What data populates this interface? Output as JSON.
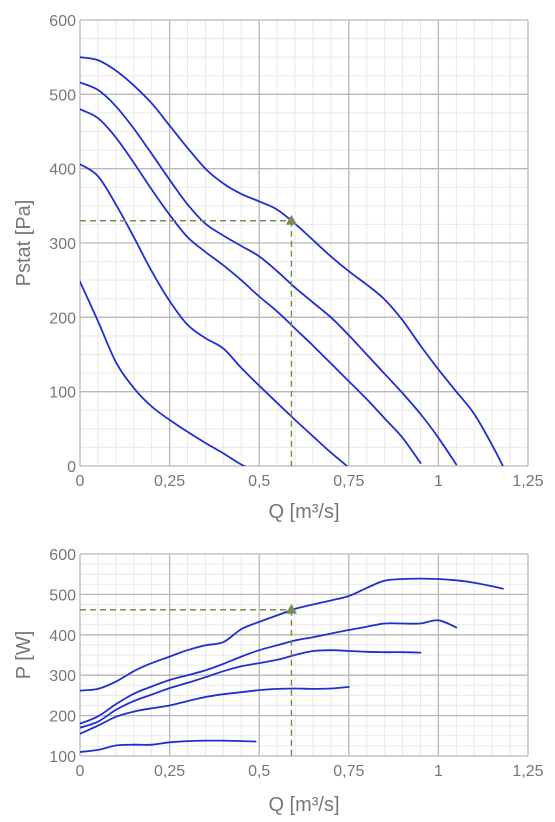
{
  "chart_data": [
    {
      "type": "line",
      "title": "",
      "xlabel": "Q [m³/s]",
      "ylabel": "Pstat [Pa]",
      "xlim": [
        0,
        1.25
      ],
      "ylim": [
        0,
        600
      ],
      "x_ticks": [
        "0",
        "0,25",
        "0,5",
        "0,75",
        "1",
        "1,25"
      ],
      "y_ticks": [
        "0",
        "100",
        "200",
        "300",
        "400",
        "500",
        "600"
      ],
      "grid": true,
      "line_color": "#1f2fd0",
      "series": [
        {
          "x": [
            0,
            0.05,
            0.1,
            0.15,
            0.2,
            0.25,
            0.3,
            0.35,
            0.4,
            0.45,
            0.5
          ],
          "y": [
            248,
            195,
            140,
            105,
            80,
            62,
            46,
            31,
            17,
            2,
            -10
          ]
        },
        {
          "x": [
            0,
            0.05,
            0.1,
            0.15,
            0.2,
            0.25,
            0.3,
            0.35,
            0.4,
            0.45,
            0.5,
            0.55,
            0.6,
            0.65,
            0.7,
            0.75
          ],
          "y": [
            406,
            390,
            352,
            308,
            262,
            222,
            190,
            172,
            158,
            132,
            108,
            85,
            62,
            40,
            18,
            -2
          ]
        },
        {
          "x": [
            0,
            0.05,
            0.1,
            0.15,
            0.2,
            0.25,
            0.3,
            0.35,
            0.4,
            0.45,
            0.5,
            0.55,
            0.6,
            0.65,
            0.7,
            0.75,
            0.8,
            0.85,
            0.9,
            0.95
          ],
          "y": [
            480,
            468,
            442,
            408,
            372,
            338,
            308,
            288,
            270,
            250,
            228,
            208,
            185,
            162,
            138,
            114,
            90,
            64,
            38,
            4
          ]
        },
        {
          "x": [
            0,
            0.05,
            0.1,
            0.15,
            0.2,
            0.25,
            0.3,
            0.35,
            0.4,
            0.45,
            0.5,
            0.55,
            0.6,
            0.65,
            0.7,
            0.75,
            0.8,
            0.85,
            0.9,
            0.95,
            1.0,
            1.05
          ],
          "y": [
            516,
            506,
            484,
            454,
            420,
            385,
            352,
            326,
            310,
            296,
            282,
            262,
            240,
            220,
            200,
            176,
            150,
            124,
            98,
            70,
            38,
            2
          ]
        },
        {
          "x": [
            0,
            0.05,
            0.1,
            0.15,
            0.2,
            0.25,
            0.3,
            0.35,
            0.4,
            0.45,
            0.5,
            0.55,
            0.6,
            0.65,
            0.7,
            0.75,
            0.8,
            0.85,
            0.9,
            0.95,
            1.0,
            1.05,
            1.1,
            1.15,
            1.18
          ],
          "y": [
            550,
            546,
            532,
            512,
            488,
            458,
            428,
            400,
            380,
            366,
            356,
            345,
            326,
            304,
            282,
            262,
            244,
            224,
            196,
            162,
            130,
            100,
            70,
            28,
            0
          ]
        }
      ],
      "operating_point": {
        "x": 0.59,
        "y": 330,
        "color": "#7a8c56"
      }
    },
    {
      "type": "line",
      "title": "",
      "xlabel": "Q [m³/s]",
      "ylabel": "P [W]",
      "xlim": [
        0,
        1.25
      ],
      "ylim": [
        100,
        600
      ],
      "x_ticks": [
        "0",
        "0,25",
        "0,5",
        "0,75",
        "1",
        "1,25"
      ],
      "y_ticks": [
        "100",
        "200",
        "300",
        "400",
        "500",
        "600"
      ],
      "grid": true,
      "line_color": "#1f2fd0",
      "series": [
        {
          "x": [
            0,
            0.05,
            0.1,
            0.15,
            0.2,
            0.25,
            0.3,
            0.35,
            0.4,
            0.45,
            0.49
          ],
          "y": [
            110,
            115,
            126,
            128,
            128,
            134,
            137,
            138,
            138,
            137,
            136
          ]
        },
        {
          "x": [
            0,
            0.05,
            0.1,
            0.15,
            0.2,
            0.25,
            0.3,
            0.35,
            0.4,
            0.45,
            0.5,
            0.55,
            0.6,
            0.65,
            0.7,
            0.75
          ],
          "y": [
            155,
            175,
            197,
            210,
            218,
            225,
            236,
            246,
            253,
            258,
            263,
            266,
            267,
            266,
            267,
            271
          ]
        },
        {
          "x": [
            0,
            0.05,
            0.1,
            0.15,
            0.2,
            0.25,
            0.3,
            0.35,
            0.4,
            0.45,
            0.5,
            0.55,
            0.6,
            0.65,
            0.7,
            0.75,
            0.8,
            0.85,
            0.9,
            0.95
          ],
          "y": [
            170,
            185,
            214,
            236,
            252,
            268,
            281,
            295,
            310,
            322,
            330,
            338,
            350,
            360,
            362,
            360,
            358,
            357,
            357,
            356
          ]
        },
        {
          "x": [
            0,
            0.05,
            0.1,
            0.15,
            0.2,
            0.25,
            0.3,
            0.35,
            0.4,
            0.45,
            0.5,
            0.55,
            0.6,
            0.65,
            0.7,
            0.75,
            0.8,
            0.85,
            0.9,
            0.95,
            1.0,
            1.05
          ],
          "y": [
            180,
            198,
            228,
            254,
            272,
            288,
            300,
            312,
            328,
            346,
            362,
            374,
            386,
            394,
            403,
            412,
            420,
            428,
            428,
            428,
            436,
            418
          ]
        },
        {
          "x": [
            0,
            0.05,
            0.1,
            0.15,
            0.2,
            0.25,
            0.3,
            0.35,
            0.4,
            0.45,
            0.5,
            0.55,
            0.6,
            0.65,
            0.7,
            0.75,
            0.8,
            0.85,
            0.9,
            0.95,
            1.0,
            1.05,
            1.1,
            1.15,
            1.18
          ],
          "y": [
            262,
            266,
            284,
            310,
            330,
            346,
            362,
            374,
            382,
            414,
            432,
            448,
            464,
            475,
            485,
            496,
            516,
            534,
            538,
            539,
            538,
            535,
            529,
            520,
            514
          ]
        }
      ],
      "operating_point": {
        "x": 0.59,
        "y": 462,
        "color": "#7a8c56"
      }
    }
  ]
}
